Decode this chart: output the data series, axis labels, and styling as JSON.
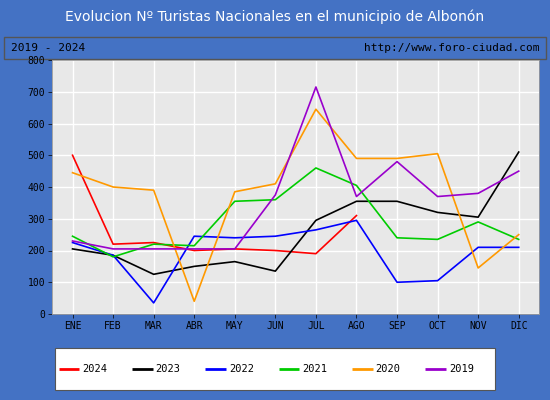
{
  "title_display": "Evolucion Nº Turistas Nacionales en el municipio de Albonón",
  "subtitle_left": "2019 - 2024",
  "subtitle_right": "http://www.foro-ciudad.com",
  "x_labels": [
    "ENE",
    "FEB",
    "MAR",
    "ABR",
    "MAY",
    "JUN",
    "JUL",
    "AGO",
    "SEP",
    "OCT",
    "NOV",
    "DIC"
  ],
  "ylim": [
    0,
    800
  ],
  "yticks": [
    0,
    100,
    200,
    300,
    400,
    500,
    600,
    700,
    800
  ],
  "series": {
    "2024": {
      "color": "#ff0000",
      "data": [
        500,
        220,
        225,
        200,
        205,
        200,
        190,
        310,
        null,
        null,
        null,
        null
      ]
    },
    "2023": {
      "color": "#000000",
      "data": [
        205,
        185,
        125,
        150,
        165,
        135,
        295,
        355,
        355,
        320,
        305,
        510
      ]
    },
    "2022": {
      "color": "#0000ff",
      "data": [
        225,
        185,
        35,
        245,
        240,
        245,
        265,
        295,
        100,
        105,
        210,
        210
      ]
    },
    "2021": {
      "color": "#00cc00",
      "data": [
        245,
        180,
        220,
        215,
        355,
        360,
        460,
        405,
        240,
        235,
        290,
        235
      ]
    },
    "2020": {
      "color": "#ff9900",
      "data": [
        445,
        400,
        390,
        40,
        385,
        410,
        645,
        490,
        490,
        505,
        145,
        250
      ]
    },
    "2019": {
      "color": "#9900cc",
      "data": [
        230,
        205,
        205,
        205,
        205,
        375,
        715,
        370,
        480,
        370,
        380,
        450
      ]
    }
  },
  "legend_order": [
    "2024",
    "2023",
    "2022",
    "2021",
    "2020",
    "2019"
  ],
  "title_bg_color": "#4472c4",
  "title_fg_color": "#ffffff",
  "plot_bg_color": "#e8e8e8",
  "grid_color": "#ffffff",
  "border_color": "#4472c4",
  "frame_color": "#000000"
}
